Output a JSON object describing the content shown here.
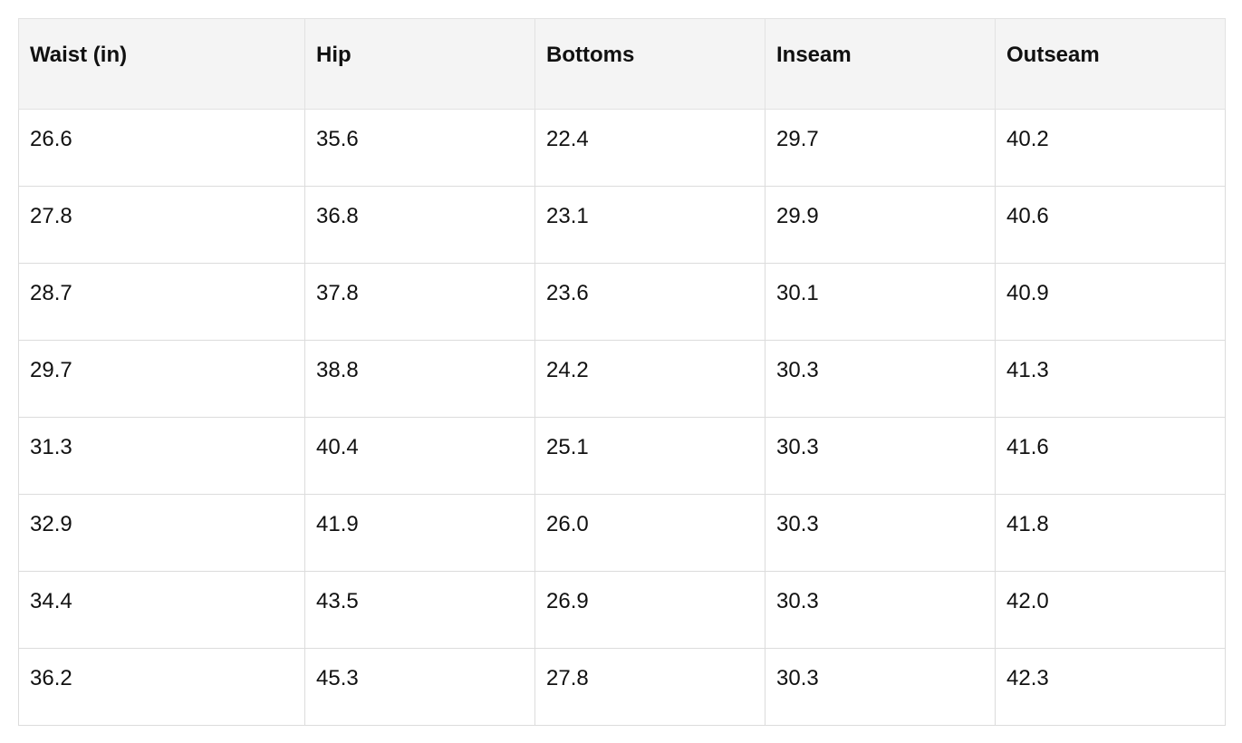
{
  "table": {
    "header": [
      "Waist (in)",
      "Hip",
      "Bottoms",
      "Inseam",
      "Outseam"
    ],
    "rows": [
      [
        "26.6",
        "35.6",
        "22.4",
        "29.7",
        "40.2"
      ],
      [
        "27.8",
        "36.8",
        "23.1",
        "29.9",
        "40.6"
      ],
      [
        "28.7",
        "37.8",
        "23.6",
        "30.1",
        "40.9"
      ],
      [
        "29.7",
        "38.8",
        "24.2",
        "30.3",
        "41.3"
      ],
      [
        "31.3",
        "40.4",
        "25.1",
        "30.3",
        "41.6"
      ],
      [
        "32.9",
        "41.9",
        "26.0",
        "30.3",
        "41.8"
      ],
      [
        "34.4",
        "43.5",
        "26.9",
        "30.3",
        "42.0"
      ],
      [
        "36.2",
        "45.3",
        "27.8",
        "30.3",
        "42.3"
      ]
    ]
  }
}
